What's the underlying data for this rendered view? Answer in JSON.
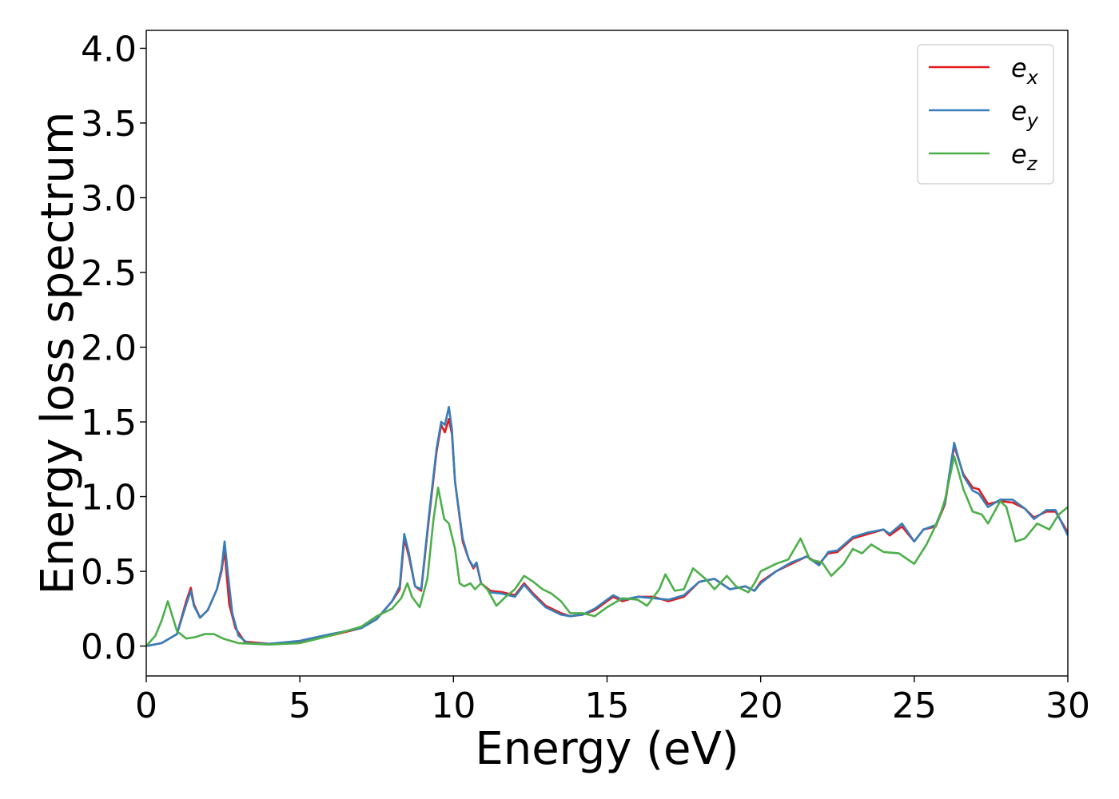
{
  "chart_data": {
    "type": "line",
    "xlabel": "Energy (eV)",
    "ylabel": "Energy loss spectrum",
    "xlim": [
      0,
      30
    ],
    "ylim": [
      -0.2,
      4.12
    ],
    "xticks": [
      0,
      5,
      10,
      15,
      20,
      25,
      30
    ],
    "xtick_labels": [
      "0",
      "5",
      "10",
      "15",
      "20",
      "25",
      "30"
    ],
    "yticks": [
      0.0,
      0.5,
      1.0,
      1.5,
      2.0,
      2.5,
      3.0,
      3.5,
      4.0
    ],
    "ytick_labels": [
      "0.0",
      "0.5",
      "1.0",
      "1.5",
      "2.0",
      "2.5",
      "3.0",
      "3.5",
      "4.0"
    ],
    "grid": false,
    "legend_position": "top-right",
    "series": [
      {
        "name": "e_x",
        "base": "e",
        "sub": "x",
        "color": "#e41a1c",
        "points": [
          [
            0,
            0
          ],
          [
            0.5,
            0.02
          ],
          [
            1.0,
            0.08
          ],
          [
            1.3,
            0.3
          ],
          [
            1.45,
            0.39
          ],
          [
            1.55,
            0.28
          ],
          [
            1.75,
            0.19
          ],
          [
            2.0,
            0.24
          ],
          [
            2.3,
            0.38
          ],
          [
            2.45,
            0.5
          ],
          [
            2.55,
            0.65
          ],
          [
            2.6,
            0.52
          ],
          [
            2.7,
            0.28
          ],
          [
            2.9,
            0.12
          ],
          [
            3.2,
            0.03
          ],
          [
            4.0,
            0.015
          ],
          [
            5.0,
            0.03
          ],
          [
            6.0,
            0.07
          ],
          [
            7.0,
            0.12
          ],
          [
            7.5,
            0.18
          ],
          [
            8.0,
            0.3
          ],
          [
            8.25,
            0.38
          ],
          [
            8.4,
            0.72
          ],
          [
            8.55,
            0.6
          ],
          [
            8.75,
            0.4
          ],
          [
            8.95,
            0.37
          ],
          [
            9.2,
            0.85
          ],
          [
            9.45,
            1.3
          ],
          [
            9.6,
            1.48
          ],
          [
            9.72,
            1.43
          ],
          [
            9.85,
            1.52
          ],
          [
            9.95,
            1.42
          ],
          [
            10.05,
            1.1
          ],
          [
            10.3,
            0.7
          ],
          [
            10.5,
            0.58
          ],
          [
            10.65,
            0.52
          ],
          [
            10.75,
            0.55
          ],
          [
            10.9,
            0.42
          ],
          [
            11.2,
            0.37
          ],
          [
            11.6,
            0.36
          ],
          [
            12.0,
            0.34
          ],
          [
            12.3,
            0.42
          ],
          [
            12.6,
            0.35
          ],
          [
            13.0,
            0.27
          ],
          [
            13.5,
            0.22
          ],
          [
            13.8,
            0.2
          ],
          [
            14.2,
            0.21
          ],
          [
            14.6,
            0.24
          ],
          [
            15.0,
            0.3
          ],
          [
            15.2,
            0.33
          ],
          [
            15.5,
            0.3
          ],
          [
            16.0,
            0.33
          ],
          [
            16.5,
            0.33
          ],
          [
            17.0,
            0.3
          ],
          [
            17.5,
            0.33
          ],
          [
            18.0,
            0.43
          ],
          [
            18.5,
            0.45
          ],
          [
            19.0,
            0.38
          ],
          [
            19.5,
            0.4
          ],
          [
            19.8,
            0.37
          ],
          [
            20.0,
            0.43
          ],
          [
            20.5,
            0.5
          ],
          [
            21.0,
            0.55
          ],
          [
            21.5,
            0.6
          ],
          [
            21.9,
            0.55
          ],
          [
            22.2,
            0.62
          ],
          [
            22.5,
            0.63
          ],
          [
            23.0,
            0.72
          ],
          [
            23.5,
            0.75
          ],
          [
            24.0,
            0.78
          ],
          [
            24.2,
            0.74
          ],
          [
            24.6,
            0.8
          ],
          [
            25.0,
            0.7
          ],
          [
            25.3,
            0.78
          ],
          [
            25.7,
            0.8
          ],
          [
            26.0,
            0.95
          ],
          [
            26.3,
            1.34
          ],
          [
            26.6,
            1.15
          ],
          [
            26.9,
            1.06
          ],
          [
            27.1,
            1.05
          ],
          [
            27.4,
            0.95
          ],
          [
            27.8,
            0.97
          ],
          [
            28.2,
            0.96
          ],
          [
            28.6,
            0.92
          ],
          [
            28.9,
            0.86
          ],
          [
            29.3,
            0.9
          ],
          [
            29.6,
            0.9
          ],
          [
            30.0,
            0.76
          ]
        ]
      },
      {
        "name": "e_y",
        "base": "e",
        "sub": "y",
        "color": "#377eb8",
        "points": [
          [
            0,
            0
          ],
          [
            0.5,
            0.02
          ],
          [
            1.0,
            0.08
          ],
          [
            1.3,
            0.28
          ],
          [
            1.45,
            0.37
          ],
          [
            1.55,
            0.27
          ],
          [
            1.75,
            0.19
          ],
          [
            2.0,
            0.24
          ],
          [
            2.3,
            0.38
          ],
          [
            2.45,
            0.52
          ],
          [
            2.55,
            0.7
          ],
          [
            2.65,
            0.5
          ],
          [
            2.8,
            0.22
          ],
          [
            3.0,
            0.07
          ],
          [
            3.3,
            0.02
          ],
          [
            4.0,
            0.015
          ],
          [
            5.0,
            0.035
          ],
          [
            6.0,
            0.08
          ],
          [
            7.0,
            0.12
          ],
          [
            7.5,
            0.18
          ],
          [
            8.0,
            0.3
          ],
          [
            8.25,
            0.4
          ],
          [
            8.4,
            0.75
          ],
          [
            8.55,
            0.62
          ],
          [
            8.75,
            0.4
          ],
          [
            8.95,
            0.38
          ],
          [
            9.2,
            0.87
          ],
          [
            9.45,
            1.32
          ],
          [
            9.6,
            1.5
          ],
          [
            9.72,
            1.48
          ],
          [
            9.85,
            1.6
          ],
          [
            9.95,
            1.45
          ],
          [
            10.05,
            1.1
          ],
          [
            10.3,
            0.72
          ],
          [
            10.5,
            0.58
          ],
          [
            10.65,
            0.53
          ],
          [
            10.75,
            0.56
          ],
          [
            10.9,
            0.42
          ],
          [
            11.2,
            0.36
          ],
          [
            11.6,
            0.35
          ],
          [
            12.0,
            0.33
          ],
          [
            12.3,
            0.41
          ],
          [
            12.6,
            0.34
          ],
          [
            13.0,
            0.26
          ],
          [
            13.5,
            0.21
          ],
          [
            13.8,
            0.2
          ],
          [
            14.2,
            0.21
          ],
          [
            14.6,
            0.25
          ],
          [
            15.0,
            0.31
          ],
          [
            15.2,
            0.34
          ],
          [
            15.5,
            0.31
          ],
          [
            16.0,
            0.33
          ],
          [
            16.5,
            0.32
          ],
          [
            17.0,
            0.31
          ],
          [
            17.5,
            0.34
          ],
          [
            18.0,
            0.43
          ],
          [
            18.5,
            0.45
          ],
          [
            19.0,
            0.38
          ],
          [
            19.5,
            0.4
          ],
          [
            19.8,
            0.37
          ],
          [
            20.0,
            0.42
          ],
          [
            20.5,
            0.5
          ],
          [
            21.0,
            0.56
          ],
          [
            21.5,
            0.6
          ],
          [
            21.9,
            0.54
          ],
          [
            22.2,
            0.63
          ],
          [
            22.5,
            0.64
          ],
          [
            23.0,
            0.73
          ],
          [
            23.5,
            0.76
          ],
          [
            24.0,
            0.78
          ],
          [
            24.2,
            0.75
          ],
          [
            24.6,
            0.82
          ],
          [
            25.0,
            0.7
          ],
          [
            25.3,
            0.78
          ],
          [
            25.7,
            0.81
          ],
          [
            26.0,
            0.96
          ],
          [
            26.3,
            1.36
          ],
          [
            26.6,
            1.14
          ],
          [
            26.9,
            1.04
          ],
          [
            27.1,
            1.02
          ],
          [
            27.4,
            0.93
          ],
          [
            27.8,
            0.98
          ],
          [
            28.2,
            0.98
          ],
          [
            28.6,
            0.92
          ],
          [
            28.9,
            0.85
          ],
          [
            29.3,
            0.91
          ],
          [
            29.6,
            0.91
          ],
          [
            30.0,
            0.74
          ]
        ]
      },
      {
        "name": "e_z",
        "base": "e",
        "sub": "z",
        "color": "#4daf4a",
        "points": [
          [
            0,
            0
          ],
          [
            0.3,
            0.07
          ],
          [
            0.5,
            0.17
          ],
          [
            0.7,
            0.3
          ],
          [
            0.85,
            0.2
          ],
          [
            1.0,
            0.1
          ],
          [
            1.3,
            0.05
          ],
          [
            1.6,
            0.06
          ],
          [
            1.9,
            0.08
          ],
          [
            2.2,
            0.08
          ],
          [
            2.5,
            0.05
          ],
          [
            3.0,
            0.02
          ],
          [
            4.0,
            0.01
          ],
          [
            5.0,
            0.02
          ],
          [
            6.0,
            0.07
          ],
          [
            6.5,
            0.1
          ],
          [
            7.0,
            0.13
          ],
          [
            7.5,
            0.2
          ],
          [
            8.0,
            0.25
          ],
          [
            8.3,
            0.32
          ],
          [
            8.5,
            0.42
          ],
          [
            8.65,
            0.33
          ],
          [
            8.9,
            0.26
          ],
          [
            9.15,
            0.45
          ],
          [
            9.35,
            0.85
          ],
          [
            9.5,
            1.06
          ],
          [
            9.7,
            0.85
          ],
          [
            9.85,
            0.82
          ],
          [
            10.05,
            0.65
          ],
          [
            10.2,
            0.42
          ],
          [
            10.35,
            0.4
          ],
          [
            10.55,
            0.42
          ],
          [
            10.7,
            0.38
          ],
          [
            10.9,
            0.42
          ],
          [
            11.1,
            0.38
          ],
          [
            11.4,
            0.27
          ],
          [
            11.7,
            0.33
          ],
          [
            12.0,
            0.38
          ],
          [
            12.3,
            0.47
          ],
          [
            12.6,
            0.43
          ],
          [
            12.9,
            0.38
          ],
          [
            13.2,
            0.35
          ],
          [
            13.5,
            0.3
          ],
          [
            13.8,
            0.22
          ],
          [
            14.2,
            0.22
          ],
          [
            14.6,
            0.2
          ],
          [
            15.0,
            0.26
          ],
          [
            15.5,
            0.32
          ],
          [
            16.0,
            0.31
          ],
          [
            16.3,
            0.27
          ],
          [
            16.7,
            0.38
          ],
          [
            16.9,
            0.48
          ],
          [
            17.2,
            0.37
          ],
          [
            17.5,
            0.38
          ],
          [
            17.8,
            0.52
          ],
          [
            18.2,
            0.45
          ],
          [
            18.5,
            0.38
          ],
          [
            18.9,
            0.47
          ],
          [
            19.2,
            0.4
          ],
          [
            19.6,
            0.36
          ],
          [
            19.8,
            0.42
          ],
          [
            20.0,
            0.5
          ],
          [
            20.5,
            0.55
          ],
          [
            20.9,
            0.58
          ],
          [
            21.3,
            0.72
          ],
          [
            21.6,
            0.58
          ],
          [
            22.0,
            0.56
          ],
          [
            22.3,
            0.47
          ],
          [
            22.7,
            0.55
          ],
          [
            23.0,
            0.65
          ],
          [
            23.3,
            0.62
          ],
          [
            23.6,
            0.68
          ],
          [
            24.0,
            0.63
          ],
          [
            24.5,
            0.62
          ],
          [
            25.0,
            0.55
          ],
          [
            25.4,
            0.68
          ],
          [
            25.8,
            0.85
          ],
          [
            26.0,
            0.98
          ],
          [
            26.3,
            1.27
          ],
          [
            26.6,
            1.05
          ],
          [
            26.9,
            0.9
          ],
          [
            27.2,
            0.88
          ],
          [
            27.4,
            0.82
          ],
          [
            27.8,
            0.97
          ],
          [
            28.0,
            0.93
          ],
          [
            28.3,
            0.7
          ],
          [
            28.6,
            0.72
          ],
          [
            29.0,
            0.82
          ],
          [
            29.4,
            0.78
          ],
          [
            29.7,
            0.88
          ],
          [
            30.0,
            0.93
          ]
        ]
      }
    ]
  }
}
